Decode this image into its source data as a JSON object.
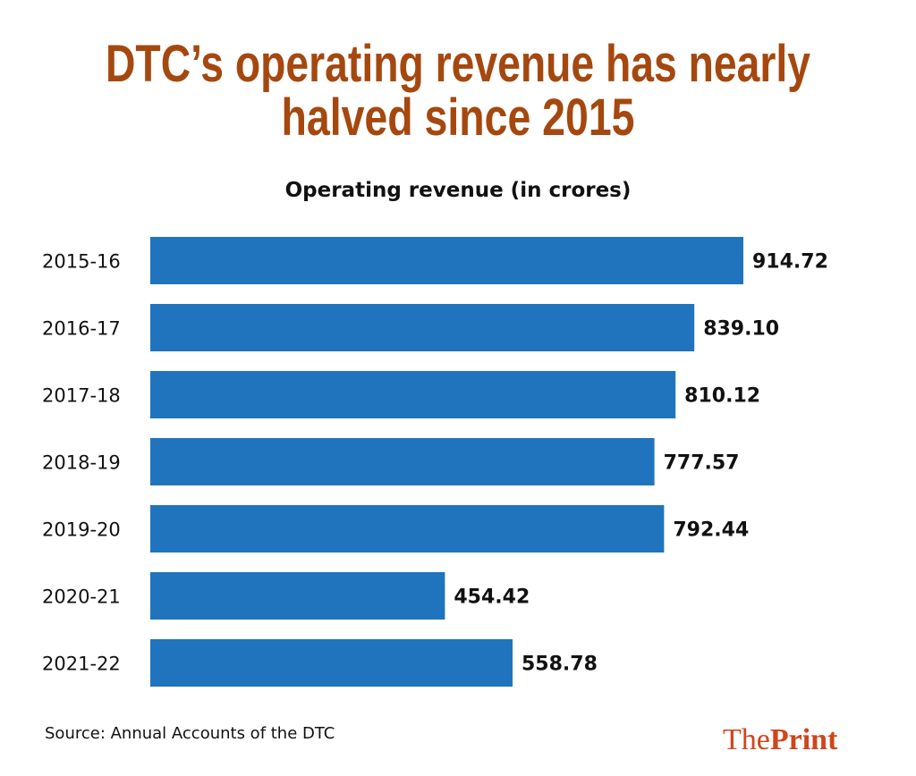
{
  "chart_data": {
    "type": "bar",
    "orientation": "horizontal",
    "title": "DTC’s operating revenue has nearly halved since 2015",
    "title_lines": [
      "DTC’s operating revenue has nearly",
      "halved since 2015"
    ],
    "subtitle": "Operating revenue (in crores)",
    "categories": [
      "2015-16",
      "2016-17",
      "2017-18",
      "2018-19",
      "2019-20",
      "2020-21",
      "2021-22"
    ],
    "values": [
      914.72,
      839.1,
      810.12,
      777.57,
      792.44,
      454.42,
      558.78
    ],
    "value_labels": [
      "914.72",
      "839.10",
      "810.12",
      "777.57",
      "792.44",
      "454.42",
      "558.78"
    ],
    "xlim": [
      0,
      914.72
    ],
    "grid": false,
    "bar_color": "#1f74bd",
    "title_color": "#a5480f"
  },
  "footer": {
    "source": "Source: Annual Accounts of the DTC",
    "logo_the": "The",
    "logo_print": "Print",
    "logo_color": "#d0451b"
  }
}
